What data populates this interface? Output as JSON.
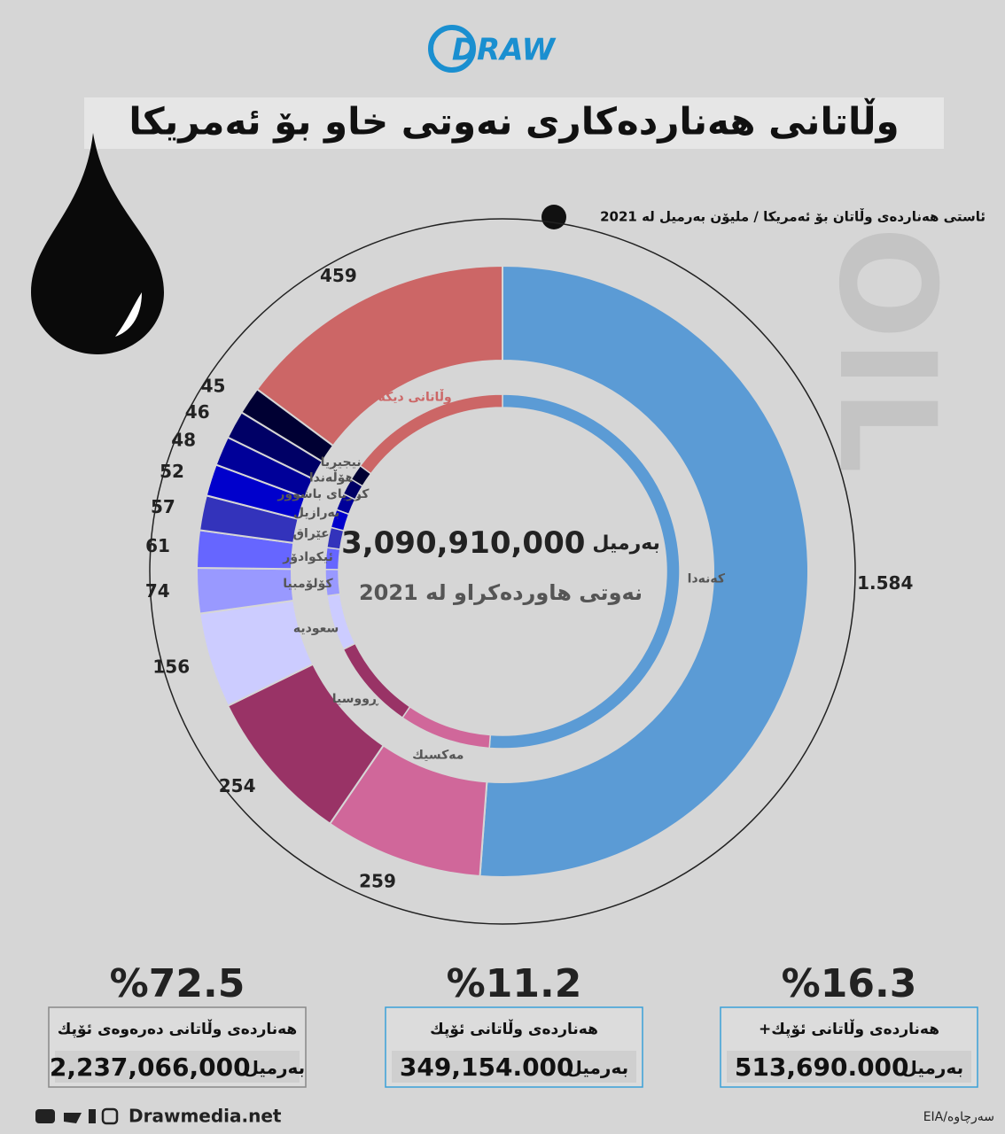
{
  "header": {
    "logo": "DRAW",
    "title": "وڵاتانی هەناردەکاری نەوتی خاو بۆ ئەمریکا",
    "watermark": "OIL"
  },
  "chart_data": {
    "type": "donut",
    "subtitle": "ئاستی هەناردەی وڵاتان بۆ ئەمریکا / ملیۆن بەرمیل لە 2021",
    "categories": [
      "کەنەدا",
      "مەکسیك",
      "ڕووسیا",
      "سعودیە",
      "کۆلۆمبیا",
      "ئیکوادۆر",
      "عێراق",
      "بەرازیل",
      "کۆریای باشوور",
      "هۆڵەندا",
      "نیجیریا",
      "وڵاتانی دیکە"
    ],
    "values": [
      1584,
      259,
      254,
      156,
      74,
      61,
      57,
      52,
      48,
      46,
      45,
      459
    ],
    "value_labels": [
      "1.584",
      "259",
      "254",
      "156",
      "74",
      "61",
      "57",
      "52",
      "48",
      "46",
      "45",
      "459"
    ],
    "colors": [
      "#5b9bd5",
      "#d0679a",
      "#993366",
      "#ccccff",
      "#9999ff",
      "#6666ff",
      "#3333bb",
      "#0000cc",
      "#000099",
      "#000066",
      "#000033",
      "#cc6666"
    ],
    "center": {
      "value": "3,090,910,000",
      "unit": "بەرمیل",
      "caption": "نەوتی هاوردەکراو لە 2021"
    }
  },
  "stats": [
    {
      "percent": "%72.5",
      "label": "هەناردەی وڵاتانی دەرەوەی ئۆپك",
      "amount": "2,237,066,000",
      "unit": "بەرمیل"
    },
    {
      "percent": "%11.2",
      "label": "هەناردەی وڵاتانی ئۆپك",
      "amount": "349,154.000",
      "unit": "بەرمیل"
    },
    {
      "percent": "%16.3",
      "label": "هەناردەی وڵاتانی ئۆپك+",
      "amount": "513,690.000",
      "unit": "بەرمیل"
    }
  ],
  "footer": {
    "site": "Drawmedia.net",
    "source": "سەرچاوە/EIA"
  }
}
